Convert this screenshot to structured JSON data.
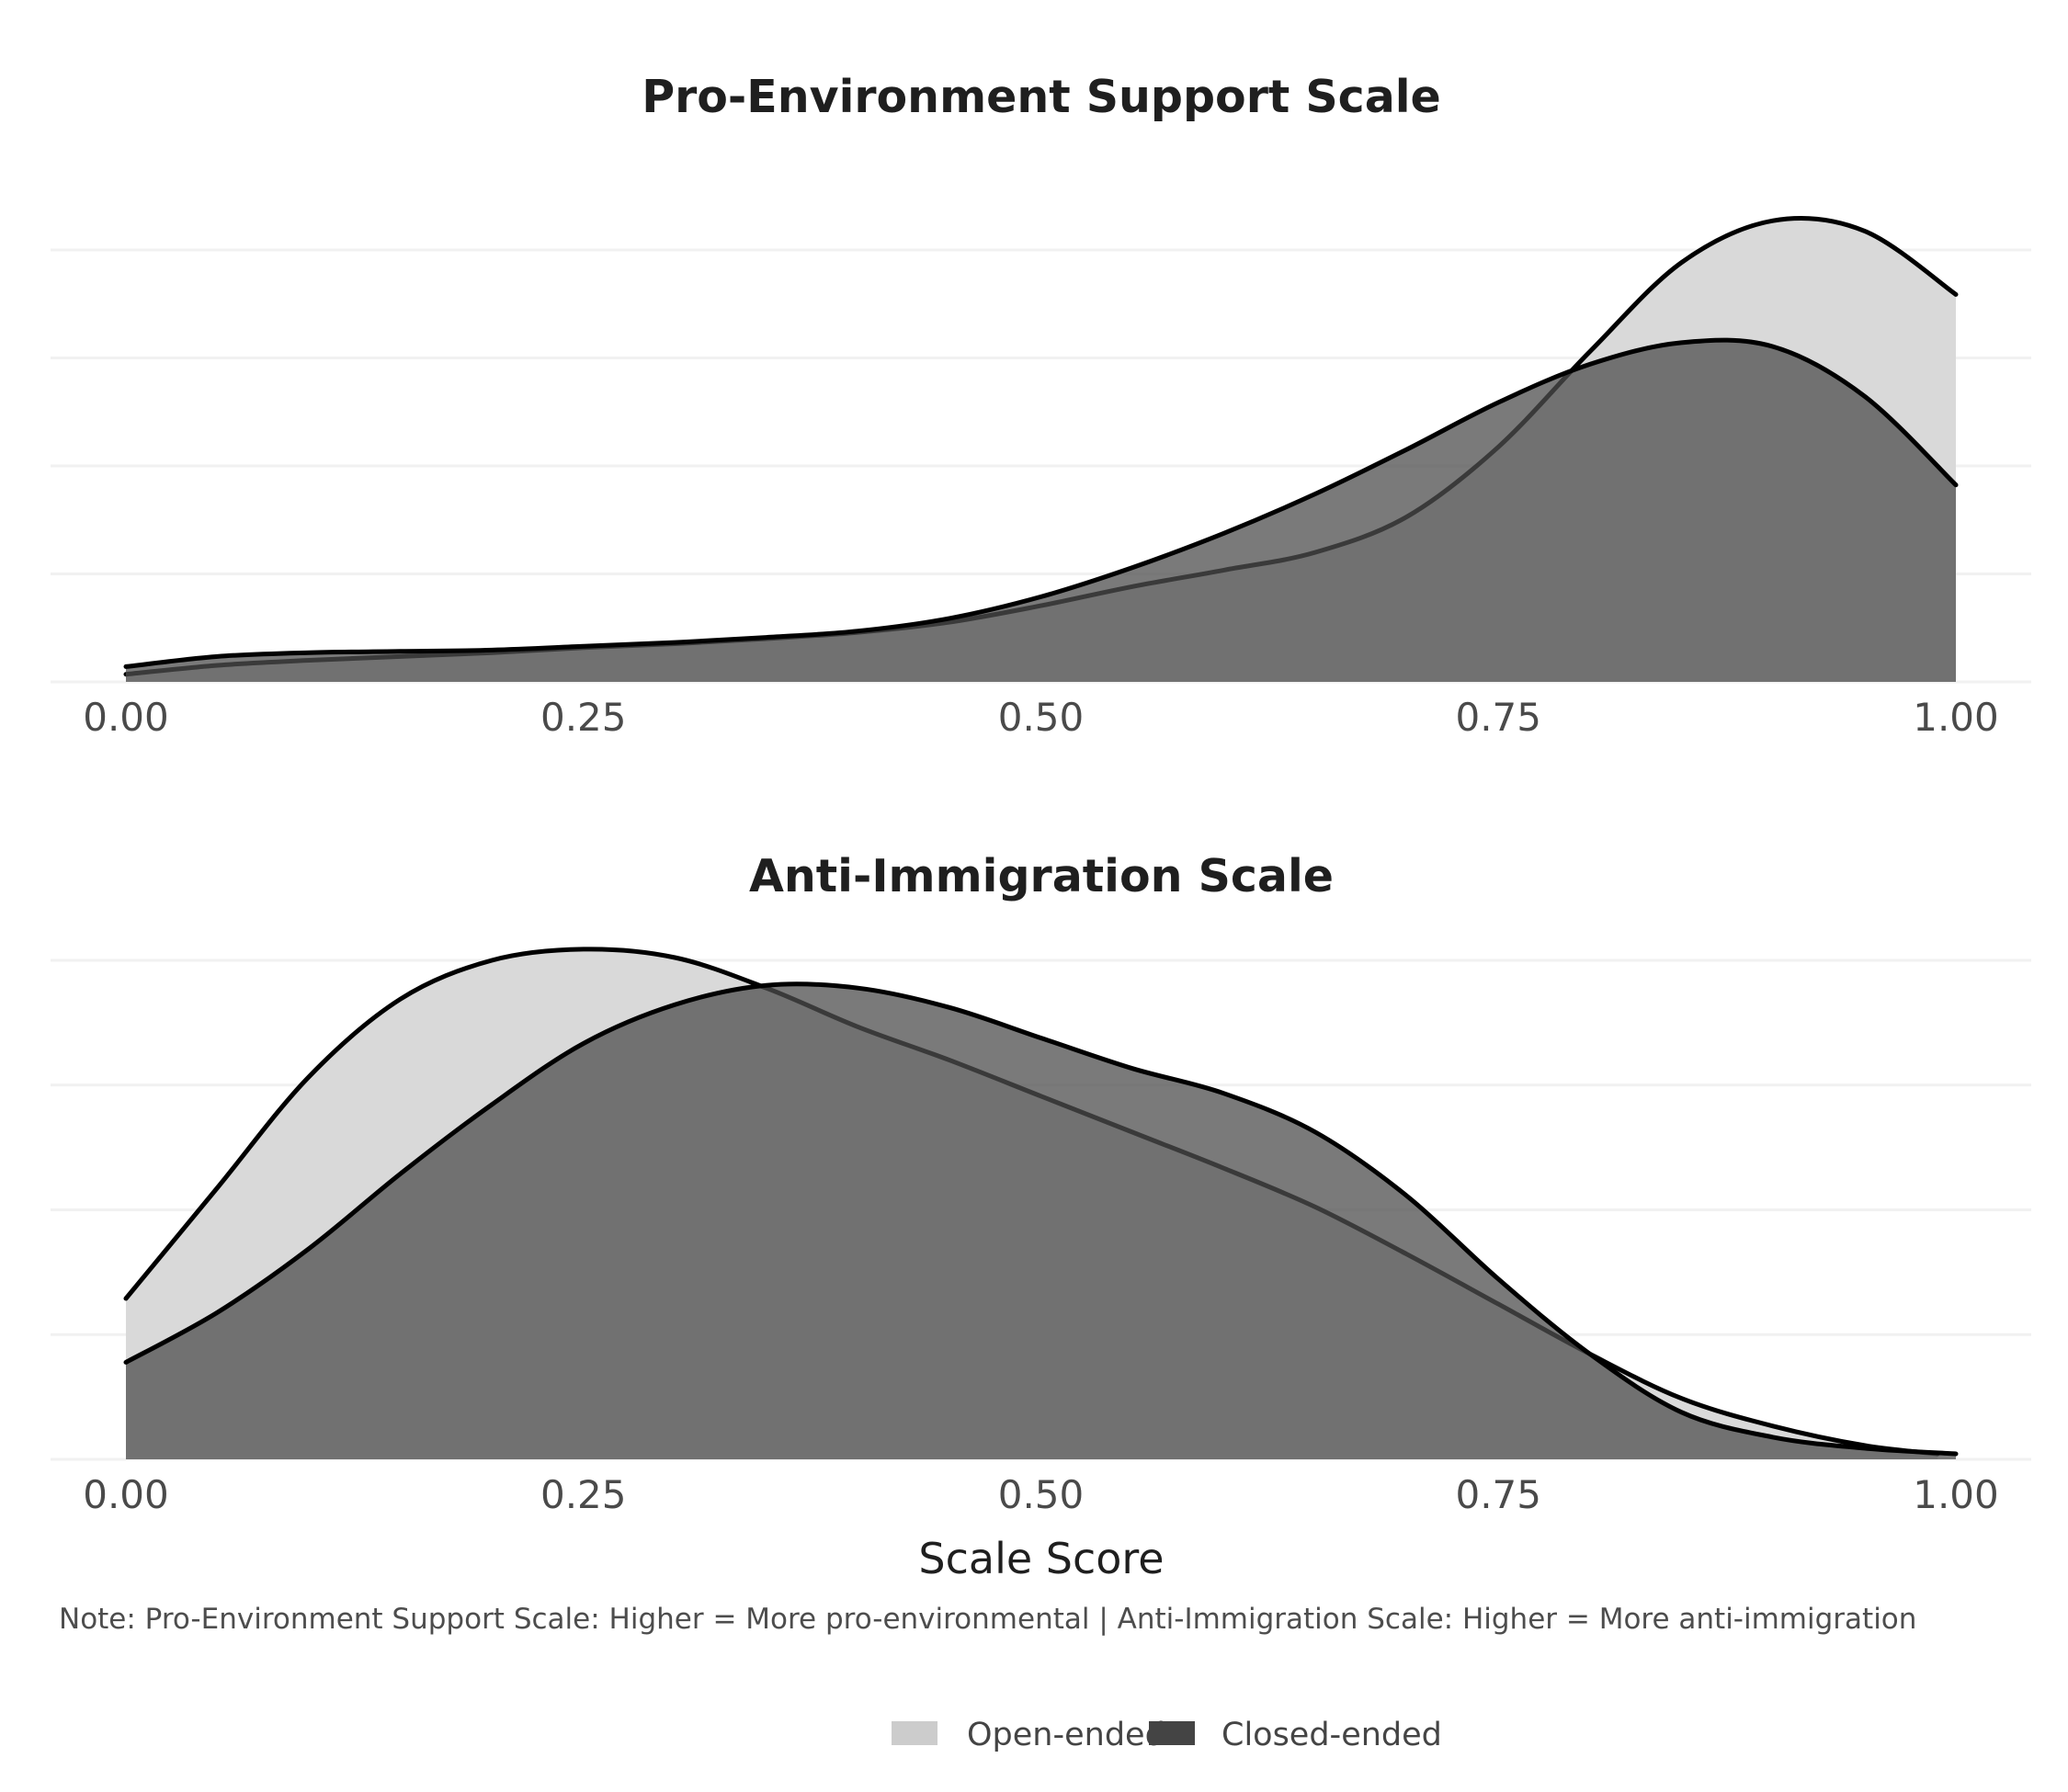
{
  "colors": {
    "open_fill": "#d9d9d9",
    "closed_fill": "#4d4d4d",
    "closed_fill_opacity": 0.75,
    "open_legend": "#cccccc",
    "closed_legend": "#444444",
    "outline": "#000000"
  },
  "x_axis_title": "Scale Score",
  "note": "Note: Pro-Environment Support Scale: Higher = More pro-environmental | Anti-Immigration Scale: Higher = More anti-immigration",
  "legend": {
    "position": "bottom",
    "items": [
      {
        "label": "Open-ended",
        "color": "#cccccc"
      },
      {
        "label": "Closed-ended",
        "color": "#444444"
      }
    ]
  },
  "chart_data": [
    {
      "type": "area",
      "title": "Pro-Environment Support Scale",
      "xlabel": "",
      "ylabel": "",
      "xlim": [
        0,
        1
      ],
      "ylim": [
        0,
        3.4
      ],
      "x_ticks": [
        "0.00",
        "0.25",
        "0.50",
        "0.75",
        "1.00"
      ],
      "grid": true,
      "y_ticks_shown": false,
      "series": [
        {
          "name": "Open-ended",
          "x": [
            0,
            0.05,
            0.1,
            0.15,
            0.2,
            0.25,
            0.3,
            0.35,
            0.4,
            0.45,
            0.5,
            0.55,
            0.6,
            0.65,
            0.7,
            0.75,
            0.8,
            0.85,
            0.9,
            0.95,
            1.0
          ],
          "y": [
            0.06,
            0.13,
            0.17,
            0.2,
            0.23,
            0.27,
            0.3,
            0.34,
            0.39,
            0.47,
            0.6,
            0.75,
            0.88,
            1.02,
            1.3,
            1.85,
            2.6,
            3.3,
            3.63,
            3.55,
            3.05
          ]
        },
        {
          "name": "Closed-ended",
          "x": [
            0,
            0.05,
            0.1,
            0.15,
            0.2,
            0.25,
            0.3,
            0.35,
            0.4,
            0.45,
            0.5,
            0.55,
            0.6,
            0.65,
            0.7,
            0.75,
            0.8,
            0.85,
            0.9,
            0.95,
            1.0
          ],
          "y": [
            0.12,
            0.2,
            0.23,
            0.24,
            0.25,
            0.28,
            0.31,
            0.35,
            0.4,
            0.5,
            0.67,
            0.9,
            1.17,
            1.48,
            1.83,
            2.2,
            2.5,
            2.67,
            2.64,
            2.25,
            1.55
          ]
        }
      ]
    },
    {
      "type": "area",
      "title": "Anti-Immigration Scale",
      "xlabel": "Scale Score",
      "ylabel": "",
      "xlim": [
        0,
        1
      ],
      "ylim": [
        0,
        1.8
      ],
      "x_ticks": [
        "0.00",
        "0.25",
        "0.50",
        "0.75",
        "1.00"
      ],
      "grid": true,
      "y_ticks_shown": false,
      "series": [
        {
          "name": "Open-ended",
          "x": [
            0,
            0.05,
            0.1,
            0.15,
            0.2,
            0.25,
            0.3,
            0.35,
            0.4,
            0.45,
            0.5,
            0.55,
            0.6,
            0.65,
            0.7,
            0.75,
            0.8,
            0.85,
            0.9,
            0.95,
            0.99
          ],
          "y": [
            0.58,
            0.98,
            1.38,
            1.66,
            1.8,
            1.84,
            1.81,
            1.7,
            1.56,
            1.44,
            1.31,
            1.18,
            1.05,
            0.91,
            0.74,
            0.56,
            0.38,
            0.22,
            0.12,
            0.05,
            0.02
          ]
        },
        {
          "name": "Closed-ended",
          "x": [
            0,
            0.05,
            0.1,
            0.15,
            0.2,
            0.25,
            0.3,
            0.35,
            0.4,
            0.45,
            0.5,
            0.55,
            0.6,
            0.65,
            0.7,
            0.75,
            0.8,
            0.85,
            0.9,
            0.95,
            1.0
          ],
          "y": [
            0.35,
            0.53,
            0.76,
            1.03,
            1.28,
            1.5,
            1.64,
            1.71,
            1.7,
            1.63,
            1.52,
            1.41,
            1.32,
            1.18,
            0.95,
            0.65,
            0.38,
            0.17,
            0.08,
            0.04,
            0.02
          ]
        }
      ]
    }
  ]
}
